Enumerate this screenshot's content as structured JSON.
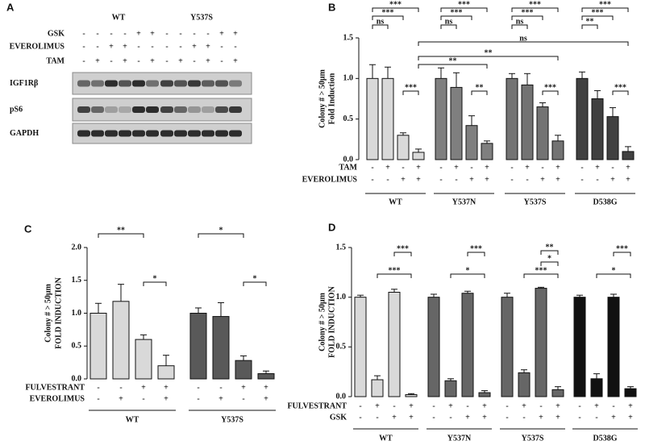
{
  "blot": {
    "panel": "A",
    "groups": [
      "WT",
      "Y537S"
    ],
    "treatments": [
      {
        "name": "GSK",
        "signs": [
          "-",
          "-",
          "-",
          "-",
          "+",
          "+",
          "-",
          "-",
          "-",
          "-",
          "+",
          "+"
        ]
      },
      {
        "name": "EVEROLIMUS",
        "signs": [
          "-",
          "-",
          "+",
          "+",
          "-",
          "-",
          "-",
          "-",
          "+",
          "+",
          "-",
          "-"
        ]
      },
      {
        "name": "TAM",
        "signs": [
          "-",
          "+",
          "-",
          "+",
          "-",
          "+",
          "-",
          "+",
          "-",
          "+",
          "-",
          "+"
        ]
      }
    ],
    "rows": [
      "IGF1Rβ",
      "pS6",
      "GAPDH"
    ]
  },
  "chart_data": [
    {
      "type": "bar",
      "panel": "B",
      "ylabel": [
        "Colony # > 50μm",
        "Fold Induction"
      ],
      "ylim": [
        0,
        1.5
      ],
      "yticks": [
        {
          "value": 0,
          "label": "0.0"
        },
        {
          "value": 0.5,
          "label": "0.5"
        },
        {
          "value": 1.0,
          "label": "1.0"
        },
        {
          "value": 1.5,
          "label": "1.5"
        }
      ],
      "groups": [
        {
          "name": "WT",
          "color": "#d9d9d9",
          "values": [
            1.0,
            1.0,
            0.3,
            0.09
          ],
          "errors": [
            0.17,
            0.14,
            0.03,
            0.04
          ]
        },
        {
          "name": "Y537N",
          "color": "#7f7f7f",
          "values": [
            1.0,
            0.89,
            0.42,
            0.2
          ],
          "errors": [
            0.13,
            0.18,
            0.12,
            0.03
          ]
        },
        {
          "name": "Y537S",
          "color": "#737373",
          "values": [
            1.0,
            0.92,
            0.65,
            0.23
          ],
          "errors": [
            0.06,
            0.14,
            0.05,
            0.07
          ]
        },
        {
          "name": "D538G",
          "color": "#404040",
          "values": [
            1.0,
            0.75,
            0.53,
            0.1
          ],
          "errors": [
            0.08,
            0.1,
            0.11,
            0.06
          ]
        }
      ],
      "treatments": [
        {
          "name": "TAM",
          "signs": [
            "-",
            "+",
            "-",
            "+"
          ]
        },
        {
          "name": "EVEROLIMUS",
          "signs": [
            "-",
            "-",
            "+",
            "+"
          ]
        }
      ],
      "significance": [
        "***",
        "***",
        "ns",
        "***",
        "***",
        "***",
        "ns",
        "**",
        "***",
        "***",
        "ns",
        "***",
        "***",
        "***",
        "**",
        "***",
        "ns",
        "**",
        "**"
      ]
    },
    {
      "type": "bar",
      "panel": "C",
      "ylabel": [
        "Colony # > 50μm",
        "FOLD INDUCTION"
      ],
      "ylim": [
        0,
        2.0
      ],
      "yticks": [
        {
          "value": 0,
          "label": "0.0"
        },
        {
          "value": 0.5,
          "label": "0.5"
        },
        {
          "value": 1.0,
          "label": "1.0"
        },
        {
          "value": 1.5,
          "label": "1.5"
        },
        {
          "value": 2.0,
          "label": "2.0"
        }
      ],
      "groups": [
        {
          "name": "WT",
          "color": "#d9d9d9",
          "values": [
            1.0,
            1.18,
            0.6,
            0.2
          ],
          "errors": [
            0.15,
            0.26,
            0.07,
            0.16
          ]
        },
        {
          "name": "Y537S",
          "color": "#595959",
          "values": [
            1.0,
            0.95,
            0.28,
            0.08
          ],
          "errors": [
            0.08,
            0.21,
            0.07,
            0.04
          ]
        }
      ],
      "treatments": [
        {
          "name": "FULVESTRANT",
          "signs": [
            "-",
            "-",
            "+",
            "+"
          ]
        },
        {
          "name": "EVEROLIMUS",
          "signs": [
            "-",
            "+",
            "-",
            "+"
          ]
        }
      ],
      "significance": [
        "**",
        "*",
        "*",
        "*"
      ]
    },
    {
      "type": "bar",
      "panel": "D",
      "ylabel": [
        "Colony # > 50μm",
        "FOLD INDUCTION"
      ],
      "ylim": [
        0,
        1.5
      ],
      "yticks": [
        {
          "value": 0,
          "label": "0.0"
        },
        {
          "value": 0.5,
          "label": "0.5"
        },
        {
          "value": 1.0,
          "label": "1.0"
        },
        {
          "value": 1.5,
          "label": "1.5"
        }
      ],
      "groups": [
        {
          "name": "WT",
          "color": "#d9d9d9",
          "values": [
            1.0,
            0.17,
            1.05,
            0.02
          ],
          "errors": [
            0.02,
            0.04,
            0.03,
            0.01
          ]
        },
        {
          "name": "Y537N",
          "color": "#666666",
          "values": [
            1.0,
            0.16,
            1.04,
            0.04
          ],
          "errors": [
            0.03,
            0.02,
            0.02,
            0.02
          ]
        },
        {
          "name": "Y537S",
          "color": "#666666",
          "values": [
            1.0,
            0.24,
            1.09,
            0.07
          ],
          "errors": [
            0.04,
            0.03,
            0.01,
            0.03
          ]
        },
        {
          "name": "D538G",
          "color": "#111111",
          "values": [
            1.0,
            0.18,
            1.0,
            0.08
          ],
          "errors": [
            0.02,
            0.05,
            0.03,
            0.02
          ]
        }
      ],
      "treatments": [
        {
          "name": "FULVESTRANT",
          "signs": [
            "-",
            "+",
            "-",
            "+"
          ]
        },
        {
          "name": "GSK",
          "signs": [
            "-",
            "-",
            "+",
            "+"
          ]
        }
      ],
      "significance": [
        "***",
        "***",
        "***",
        "*",
        "**",
        "*",
        "***",
        "***",
        "*"
      ]
    }
  ]
}
